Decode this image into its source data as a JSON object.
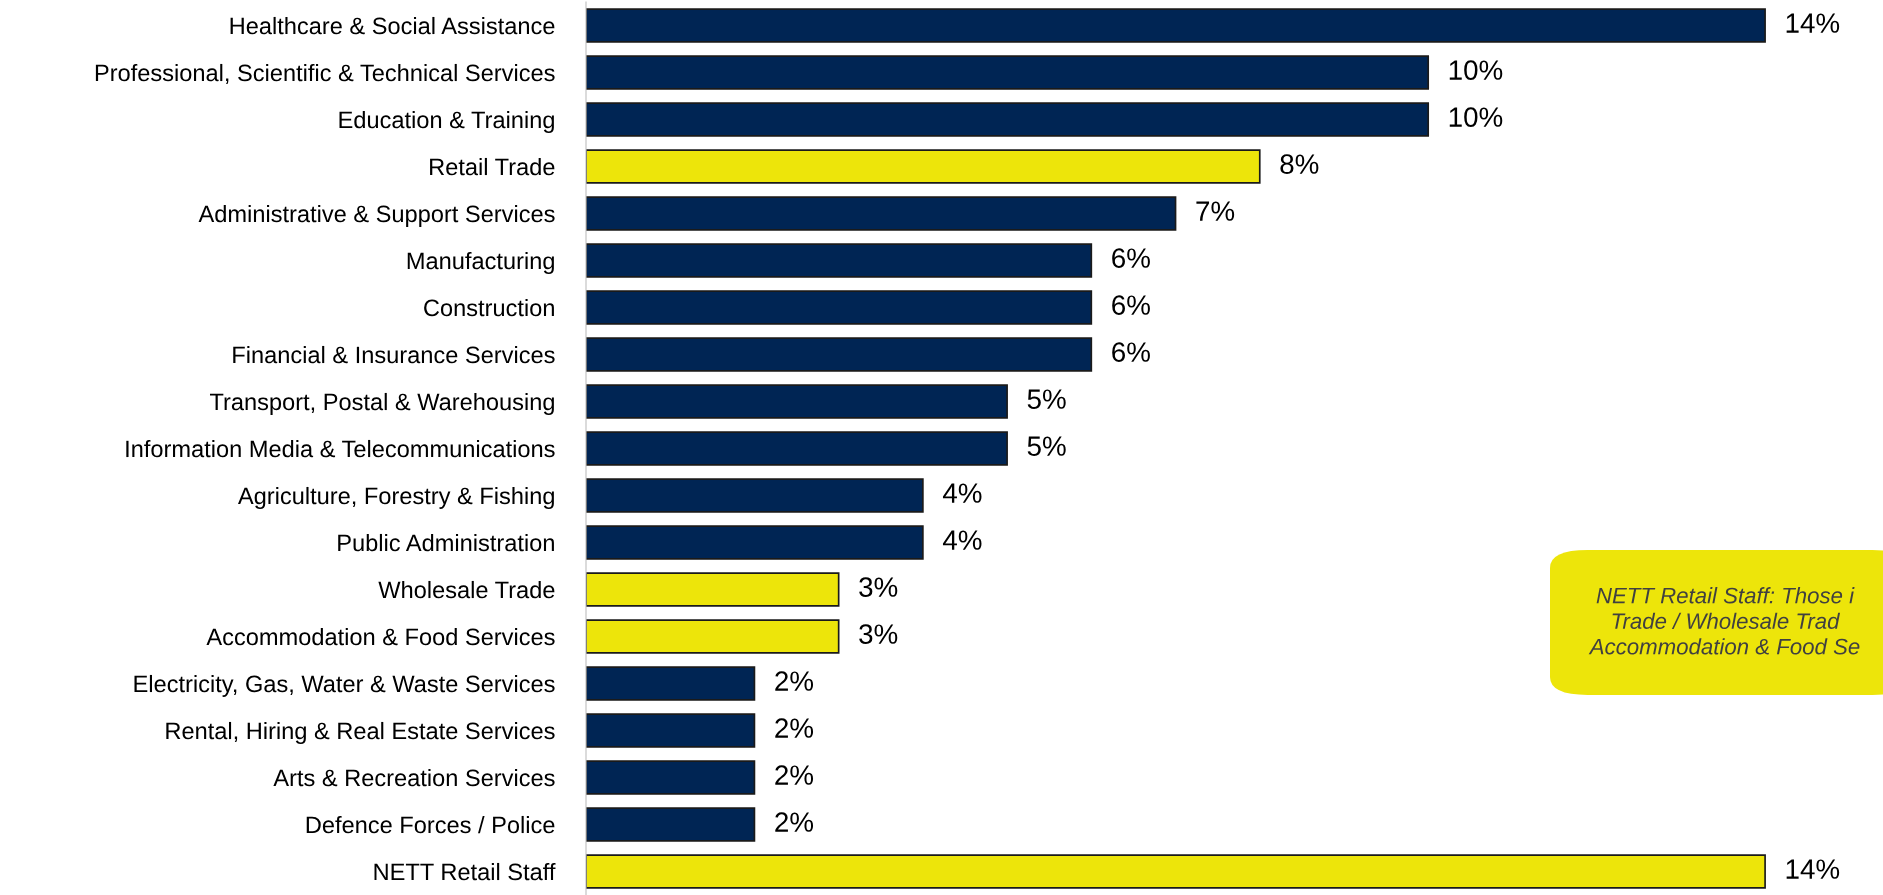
{
  "chart_data": {
    "type": "bar",
    "orientation": "horizontal",
    "categories": [
      "Healthcare & Social Assistance",
      "Professional, Scientific & Technical Services",
      "Education & Training",
      "Retail Trade",
      "Administrative & Support Services",
      "Manufacturing",
      "Construction",
      "Financial & Insurance Services",
      "Transport, Postal & Warehousing",
      "Information Media & Telecommunications",
      "Agriculture, Forestry & Fishing",
      "Public Administration",
      "Wholesale Trade",
      "Accommodation & Food Services",
      "Electricity, Gas, Water & Waste Services",
      "Rental, Hiring & Real Estate Services",
      "Arts & Recreation Services",
      "Defence Forces / Police",
      "NETT Retail Staff"
    ],
    "values": [
      14,
      10,
      10,
      8,
      7,
      6,
      6,
      6,
      5,
      5,
      4,
      4,
      3,
      3,
      2,
      2,
      2,
      2,
      14
    ],
    "value_labels": [
      "14%",
      "10%",
      "10%",
      "8%",
      "7%",
      "6%",
      "6%",
      "6%",
      "5%",
      "5%",
      "4%",
      "4%",
      "3%",
      "3%",
      "2%",
      "2%",
      "2%",
      "2%",
      "14%"
    ],
    "colors": [
      "#002554",
      "#002554",
      "#002554",
      "#ede50a",
      "#002554",
      "#002554",
      "#002554",
      "#002554",
      "#002554",
      "#002554",
      "#002554",
      "#002554",
      "#ede50a",
      "#ede50a",
      "#002554",
      "#002554",
      "#002554",
      "#002554",
      "#ede50a"
    ],
    "grid": false,
    "legend": false,
    "annotations": [
      "NETT Retail Staff: Those i\nTrade / Wholesale Trad\nAccommodation & Food Se"
    ]
  }
}
